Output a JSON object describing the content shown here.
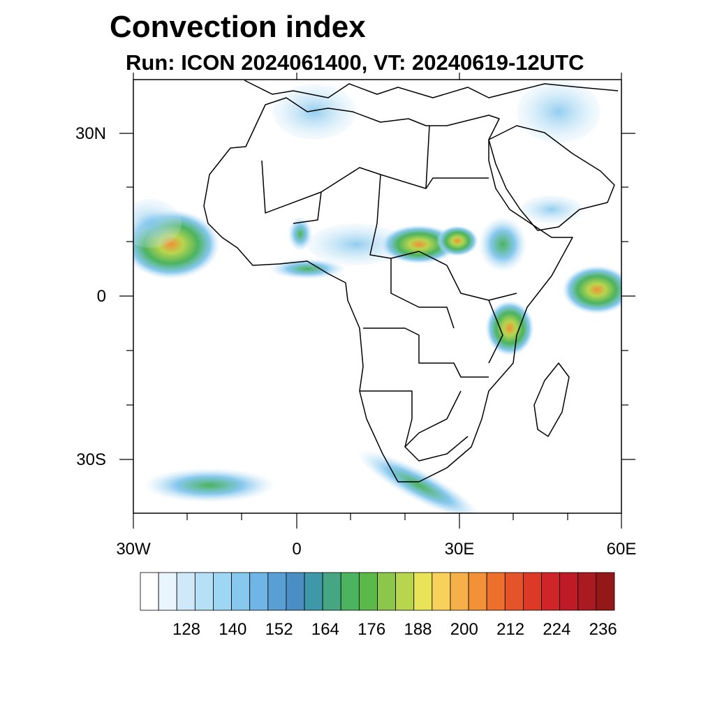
{
  "title": "Convection index",
  "subtitle": "Run: ICON 2024061400,  VT: 20240619-12UTC",
  "lat_labels": [
    "30N",
    "0",
    "30S"
  ],
  "lon_labels": [
    "30W",
    "0",
    "30E",
    "60E"
  ],
  "colorbar": {
    "labels": [
      "128",
      "140",
      "152",
      "164",
      "176",
      "188",
      "200",
      "212",
      "224",
      "236"
    ],
    "colors": [
      "#ffffff",
      "#e8f5fc",
      "#cfe9f8",
      "#b6e0f6",
      "#9ed7f4",
      "#86c8ee",
      "#6fb6e6",
      "#5a9fd4",
      "#4a8ec4",
      "#3f98a8",
      "#45a683",
      "#4cb35f",
      "#5bb94a",
      "#8cc64a",
      "#b8d54e",
      "#e8e357",
      "#f8d15a",
      "#f6b049",
      "#f29137",
      "#ed6f2c",
      "#e55428",
      "#dc3a26",
      "#cf2528",
      "#be1b26",
      "#aa1a21",
      "#941818"
    ]
  },
  "basemap": {
    "lon_range": [
      -30,
      60
    ],
    "lat_range": [
      -40,
      40
    ]
  }
}
